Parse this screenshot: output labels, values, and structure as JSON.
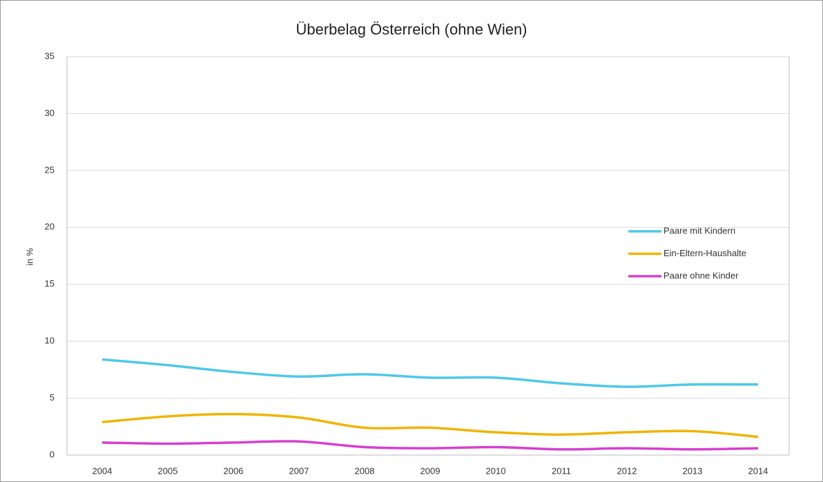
{
  "chart_data": {
    "type": "line",
    "title": "Überbelag Österreich (ohne Wien)",
    "y_label": "in %",
    "categories": [
      "2004",
      "2005",
      "2006",
      "2007",
      "2008",
      "2009",
      "2010",
      "2011",
      "2012",
      "2013",
      "2014"
    ],
    "series": [
      {
        "name": "Paare mit Kindern",
        "color": "#4dc8e8",
        "values": [
          8.4,
          7.9,
          7.3,
          6.9,
          7.1,
          6.8,
          6.8,
          6.3,
          6.0,
          6.2,
          6.2
        ]
      },
      {
        "name": "Ein-Eltern-Haushalte",
        "color": "#f0b400",
        "values": [
          2.9,
          3.4,
          3.6,
          3.3,
          2.4,
          2.4,
          2.0,
          1.8,
          2.0,
          2.1,
          1.6
        ]
      },
      {
        "name": "Paare ohne Kinder",
        "color": "#d63fd0",
        "values": [
          1.1,
          1.0,
          1.1,
          1.2,
          0.7,
          0.6,
          0.7,
          0.5,
          0.6,
          0.5,
          0.6
        ]
      }
    ],
    "ylim": [
      0,
      35
    ],
    "yticks": [
      0,
      5,
      10,
      15,
      20,
      25,
      30,
      35
    ],
    "grid": true,
    "legend": "right"
  }
}
